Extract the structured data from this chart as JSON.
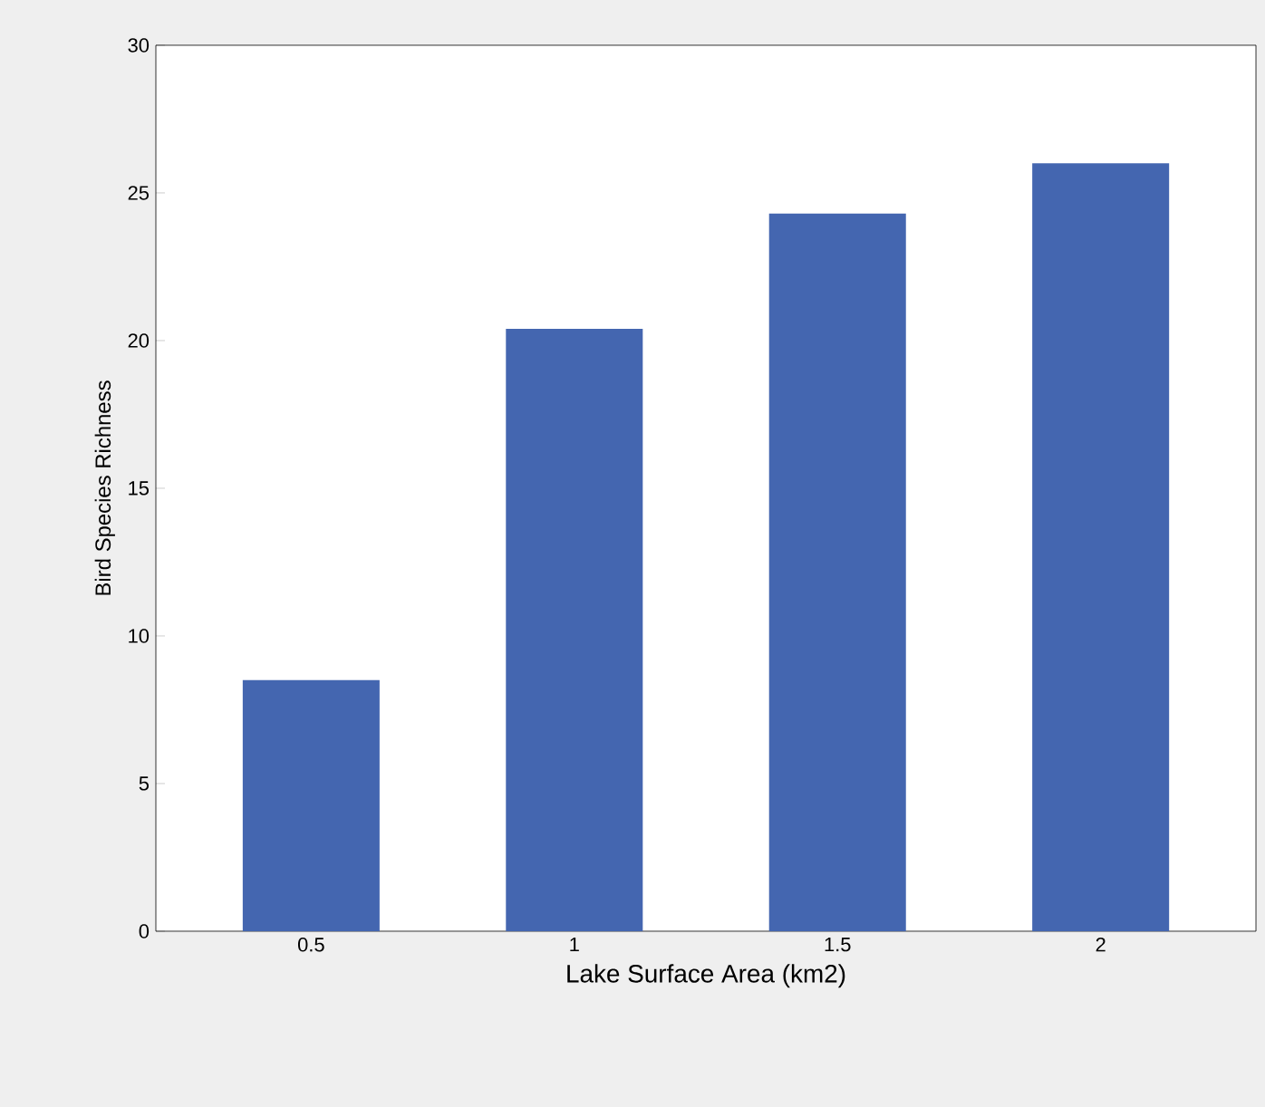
{
  "chart_data": {
    "type": "bar",
    "xlabel": "Lake Surface Area (km2)",
    "ylabel": "Bird Species Richness",
    "categories": [
      "0.5",
      "1",
      "1.5",
      "2"
    ],
    "values": [
      8.5,
      20.4,
      24.3,
      26.0
    ],
    "color": "#4466b0",
    "ylim": [
      0,
      30
    ],
    "yticks": [
      0,
      5,
      10,
      15,
      20,
      25,
      30
    ]
  }
}
